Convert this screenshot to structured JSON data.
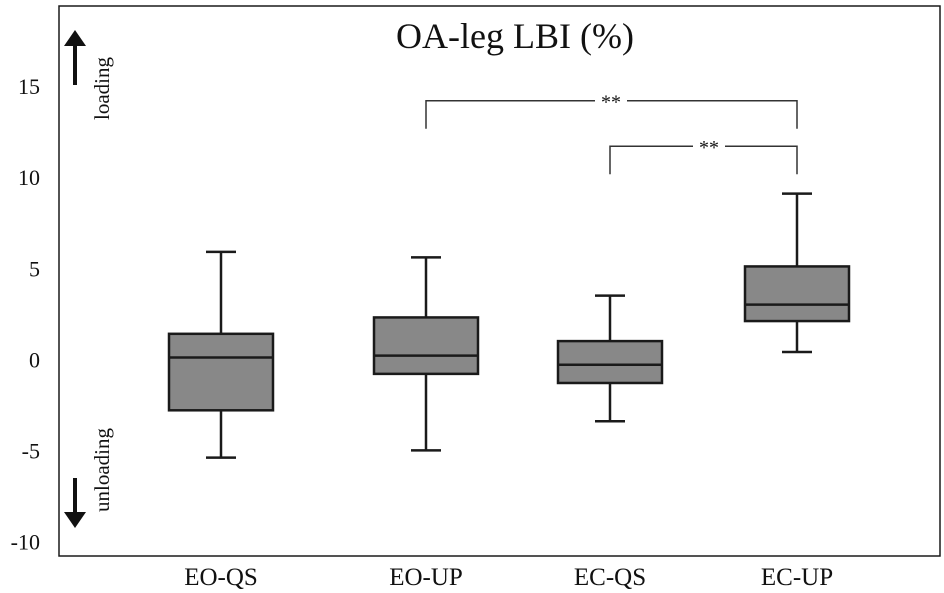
{
  "chart_data": {
    "type": "box",
    "title": "OA-leg LBI (%)",
    "categories": [
      "EO-QS",
      "EO-UP",
      "EC-QS",
      "EC-UP"
    ],
    "boxes": [
      {
        "category": "EO-QS",
        "whisker_low": -5.4,
        "q1": -2.8,
        "median": 0.1,
        "q3": 1.4,
        "whisker_high": 5.9
      },
      {
        "category": "EO-UP",
        "whisker_low": -5.0,
        "q1": -0.8,
        "median": 0.2,
        "q3": 2.3,
        "whisker_high": 5.6
      },
      {
        "category": "EC-QS",
        "whisker_low": -3.4,
        "q1": -1.3,
        "median": -0.3,
        "q3": 1.0,
        "whisker_high": 3.5
      },
      {
        "category": "EC-UP",
        "whisker_low": 0.4,
        "q1": 2.1,
        "median": 3.0,
        "q3": 5.1,
        "whisker_high": 9.1
      }
    ],
    "ylim": [
      -10.8,
      19.4
    ],
    "yticks": [
      -10,
      -5,
      0,
      5,
      10,
      15
    ],
    "annotations": {
      "loading_label": "loading",
      "unloading_label": "unloading"
    },
    "significance": [
      {
        "from": "EO-UP",
        "to": "EC-UP",
        "label": "**",
        "y": 14.2
      },
      {
        "from": "EC-QS",
        "to": "EC-UP",
        "label": "**",
        "y": 11.7
      }
    ],
    "colors": {
      "box_fill": "#888888",
      "stroke": "#1a1a1a"
    }
  }
}
